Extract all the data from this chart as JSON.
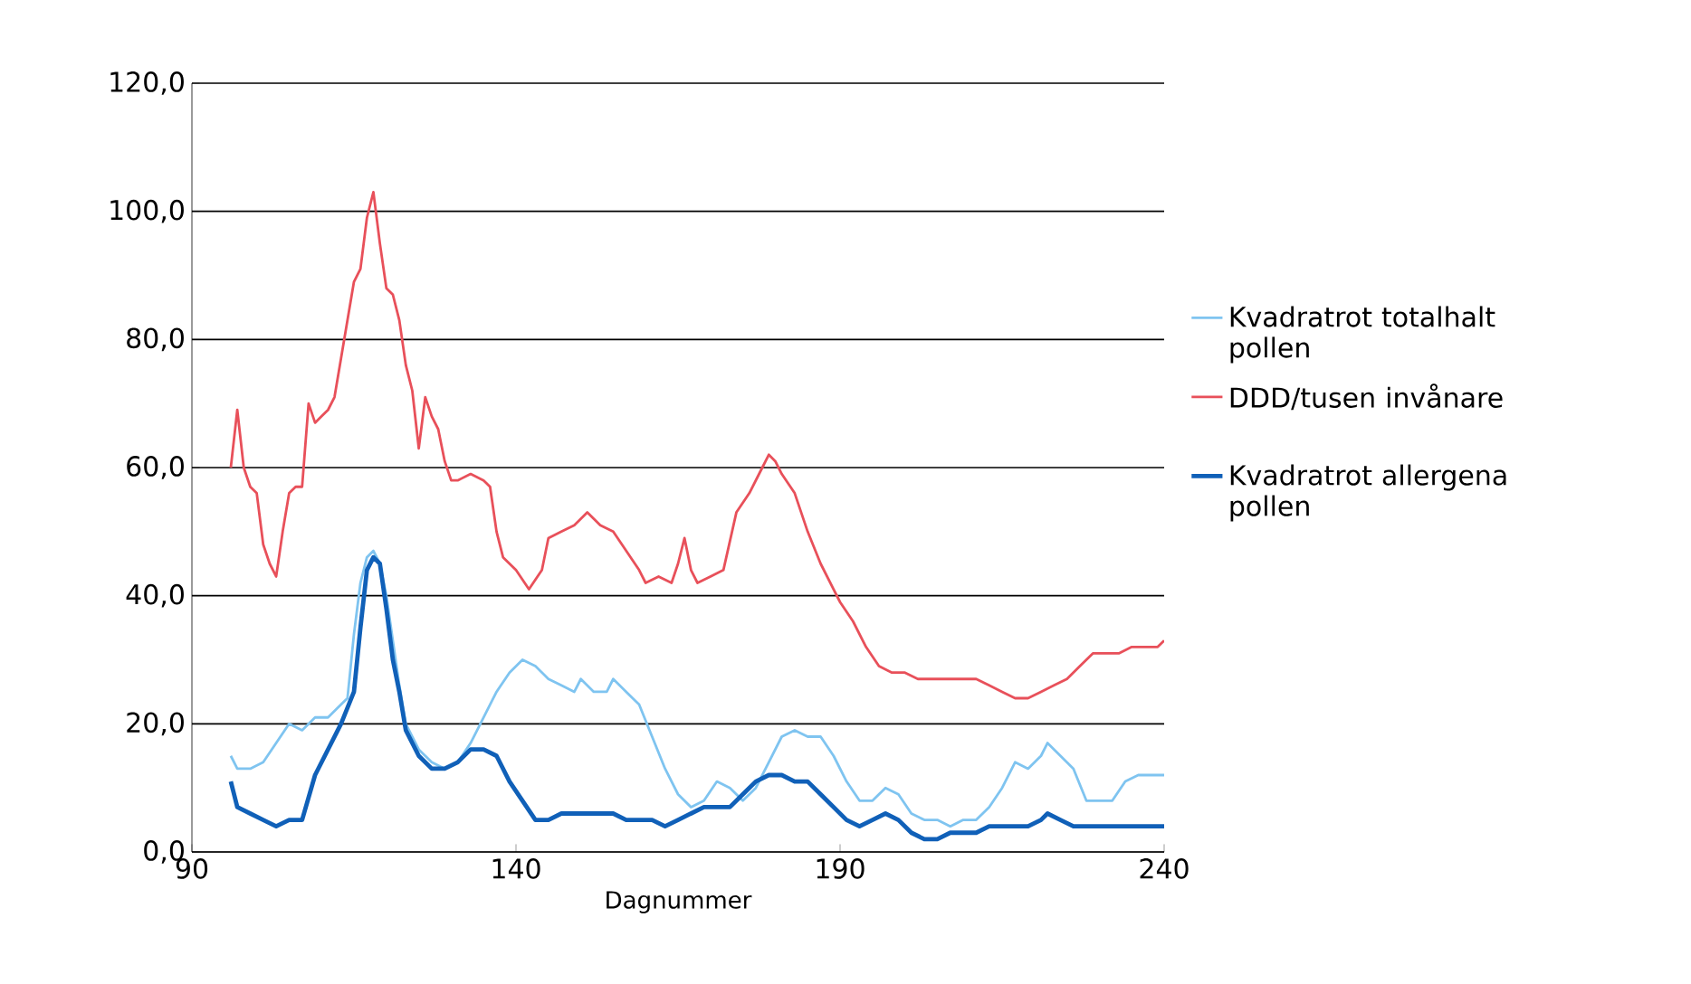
{
  "chart_data": {
    "type": "line",
    "xlabel": "Dagnummer",
    "xlim": [
      90,
      240
    ],
    "ylim": [
      0,
      120
    ],
    "xticks": [
      90,
      140,
      190,
      240
    ],
    "yticks": [
      {
        "value": 0,
        "label": "0,0"
      },
      {
        "value": 20,
        "label": "20,0"
      },
      {
        "value": 40,
        "label": "40,0"
      },
      {
        "value": 60,
        "label": "60,0"
      },
      {
        "value": 80,
        "label": "80,0"
      },
      {
        "value": 100,
        "label": "100,0"
      },
      {
        "value": 120,
        "label": "120,0"
      }
    ],
    "grid": "y",
    "legend": "right",
    "series": [
      {
        "name": "Kvadratrot totalhalt pollen",
        "color": "#7fc4f0",
        "x": [
          96,
          97,
          99,
          101,
          103,
          105,
          107,
          109,
          111,
          113,
          114,
          115,
          116,
          117,
          118,
          119,
          120,
          121,
          122,
          123,
          125,
          127,
          129,
          131,
          133,
          135,
          137,
          139,
          141,
          143,
          145,
          147,
          149,
          150,
          152,
          154,
          155,
          157,
          159,
          161,
          163,
          165,
          167,
          169,
          171,
          173,
          175,
          177,
          179,
          181,
          183,
          185,
          187,
          189,
          191,
          193,
          195,
          197,
          199,
          201,
          203,
          205,
          207,
          209,
          211,
          213,
          215,
          217,
          219,
          221,
          222,
          224,
          226,
          228,
          230,
          232,
          234,
          236,
          238,
          240
        ],
        "values": [
          15,
          13,
          13,
          14,
          17,
          20,
          19,
          21,
          21,
          23,
          24,
          34,
          42,
          46,
          47,
          45,
          40,
          33,
          26,
          20,
          16,
          14,
          13,
          14,
          17,
          21,
          25,
          28,
          30,
          29,
          27,
          26,
          25,
          27,
          25,
          25,
          27,
          25,
          23,
          18,
          13,
          9,
          7,
          8,
          11,
          10,
          8,
          10,
          14,
          18,
          19,
          18,
          18,
          15,
          11,
          8,
          8,
          10,
          9,
          6,
          5,
          5,
          4,
          5,
          5,
          7,
          10,
          14,
          13,
          15,
          17,
          15,
          13,
          8,
          8,
          8,
          11,
          12,
          12,
          12
        ]
      },
      {
        "name": "DDD/tusen invånare",
        "color": "#e8505a",
        "x": [
          96,
          97,
          98,
          99,
          100,
          101,
          102,
          103,
          104,
          105,
          106,
          107,
          108,
          109,
          110,
          111,
          112,
          113,
          114,
          115,
          116,
          117,
          118,
          119,
          120,
          121,
          122,
          123,
          124,
          125,
          126,
          127,
          128,
          129,
          130,
          131,
          133,
          135,
          136,
          137,
          138,
          140,
          142,
          144,
          145,
          147,
          149,
          151,
          153,
          155,
          157,
          159,
          160,
          162,
          164,
          165,
          166,
          167,
          168,
          170,
          172,
          174,
          176,
          178,
          179,
          180,
          181,
          183,
          185,
          187,
          189,
          190,
          192,
          194,
          196,
          198,
          200,
          202,
          205,
          208,
          211,
          213,
          215,
          217,
          219,
          221,
          223,
          225,
          227,
          229,
          231,
          233,
          235,
          237,
          239,
          240
        ],
        "values": [
          60,
          69,
          60,
          57,
          56,
          48,
          45,
          43,
          50,
          56,
          57,
          57,
          70,
          67,
          68,
          69,
          71,
          77,
          83,
          89,
          91,
          99,
          103,
          95,
          88,
          87,
          83,
          76,
          72,
          63,
          71,
          68,
          66,
          61,
          58,
          58,
          59,
          58,
          57,
          50,
          46,
          44,
          41,
          44,
          49,
          50,
          51,
          53,
          51,
          50,
          47,
          44,
          42,
          43,
          42,
          45,
          49,
          44,
          42,
          43,
          44,
          53,
          56,
          60,
          62,
          61,
          59,
          56,
          50,
          45,
          41,
          39,
          36,
          32,
          29,
          28,
          28,
          27,
          27,
          27,
          27,
          26,
          25,
          24,
          24,
          25,
          26,
          27,
          29,
          31,
          31,
          31,
          32,
          32,
          32,
          33
        ]
      },
      {
        "name": "Kvadratrot allergena pollen",
        "color": "#1060b8",
        "x": [
          96,
          97,
          99,
          101,
          103,
          105,
          107,
          109,
          111,
          113,
          115,
          116,
          117,
          118,
          119,
          120,
          121,
          122,
          123,
          125,
          127,
          129,
          131,
          133,
          135,
          137,
          139,
          141,
          143,
          145,
          147,
          149,
          151,
          153,
          155,
          157,
          159,
          161,
          163,
          165,
          167,
          169,
          171,
          173,
          175,
          177,
          179,
          181,
          183,
          185,
          187,
          189,
          191,
          193,
          195,
          197,
          199,
          201,
          203,
          205,
          207,
          209,
          211,
          213,
          215,
          217,
          219,
          221,
          222,
          224,
          226,
          228,
          230,
          232,
          234,
          236,
          238,
          240
        ],
        "values": [
          11,
          7,
          6,
          5,
          4,
          5,
          5,
          12,
          16,
          20,
          25,
          35,
          44,
          46,
          45,
          38,
          30,
          25,
          19,
          15,
          13,
          13,
          14,
          16,
          16,
          15,
          11,
          8,
          5,
          5,
          6,
          6,
          6,
          6,
          6,
          5,
          5,
          5,
          4,
          5,
          6,
          7,
          7,
          7,
          9,
          11,
          12,
          12,
          11,
          11,
          9,
          7,
          5,
          4,
          5,
          6,
          5,
          3,
          2,
          2,
          3,
          3,
          3,
          4,
          4,
          4,
          4,
          5,
          6,
          5,
          4,
          4,
          4,
          4,
          4,
          4,
          4,
          4
        ]
      }
    ]
  }
}
